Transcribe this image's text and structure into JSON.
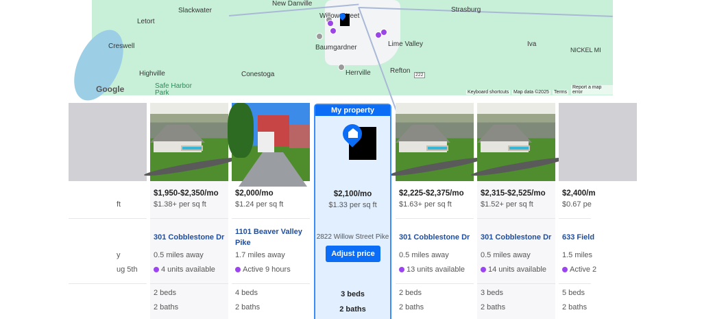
{
  "map": {
    "towns": [
      "New Danville",
      "Slackwater",
      "Strasburg",
      "Letort",
      "Willow Street",
      "Creswell",
      "Baumgardner",
      "Lime Valley",
      "Iva",
      "NICKEL MI",
      "Highville",
      "Conestoga",
      "Herrville",
      "Refton",
      "Safe Harbor Park",
      "222"
    ],
    "google_label": "Google",
    "footer": [
      "Keyboard shortcuts",
      "Map data ©2025",
      "Terms",
      "Report a map error"
    ],
    "colors": {
      "land": "#c8f0d8",
      "pin_active": "#9b45e6",
      "pin_inactive": "#9a9a9a",
      "accent": "#0b6cf5"
    }
  },
  "carousel": {
    "prev_icon": "chevron-left-icon",
    "next_icon": "chevron-right-icon",
    "partial_left": {
      "psf": "ft",
      "dist": "y",
      "status": "ug 5th"
    },
    "listings": [
      {
        "price": "$1,950-$2,350/mo",
        "psf": "$1.38+ per sq ft",
        "address": "301 Cobblestone Dr",
        "distance": "0.5 miles away",
        "status": "4 units available",
        "beds": "2 beds",
        "baths": "2 baths"
      },
      {
        "price": "$2,000/mo",
        "psf": "$1.24 per sq ft",
        "address": "1101 Beaver Valley Pike",
        "distance": "1.7 miles away",
        "status": "Active 9 hours",
        "beds": "4 beds",
        "baths": "2 baths"
      },
      {
        "price": "$2,225-$2,375/mo",
        "psf": "$1.63+ per sq ft",
        "address": "301 Cobblestone Dr",
        "distance": "0.5 miles away",
        "status": "13 units available",
        "beds": "2 beds",
        "baths": "2 baths"
      },
      {
        "price": "$2,315-$2,525/mo",
        "psf": "$1.52+ per sq ft",
        "address": "301 Cobblestone Dr",
        "distance": "0.5 miles away",
        "status": "14 units available",
        "beds": "3 beds",
        "baths": "2 baths"
      }
    ],
    "partial_right": {
      "price": "$2,400/m",
      "psf": "$0.67 pe",
      "address": "633 Field",
      "distance": "1.5 miles",
      "status": "Active 2",
      "beds": "5 beds",
      "baths": "2 baths"
    },
    "my_property": {
      "header": "My property",
      "price": "$2,100/mo",
      "psf": "$1.33 per sq ft",
      "address": "2822 Willow Street Pike",
      "adjust_label": "Adjust price",
      "beds": "3 beds",
      "baths": "2 baths"
    }
  }
}
